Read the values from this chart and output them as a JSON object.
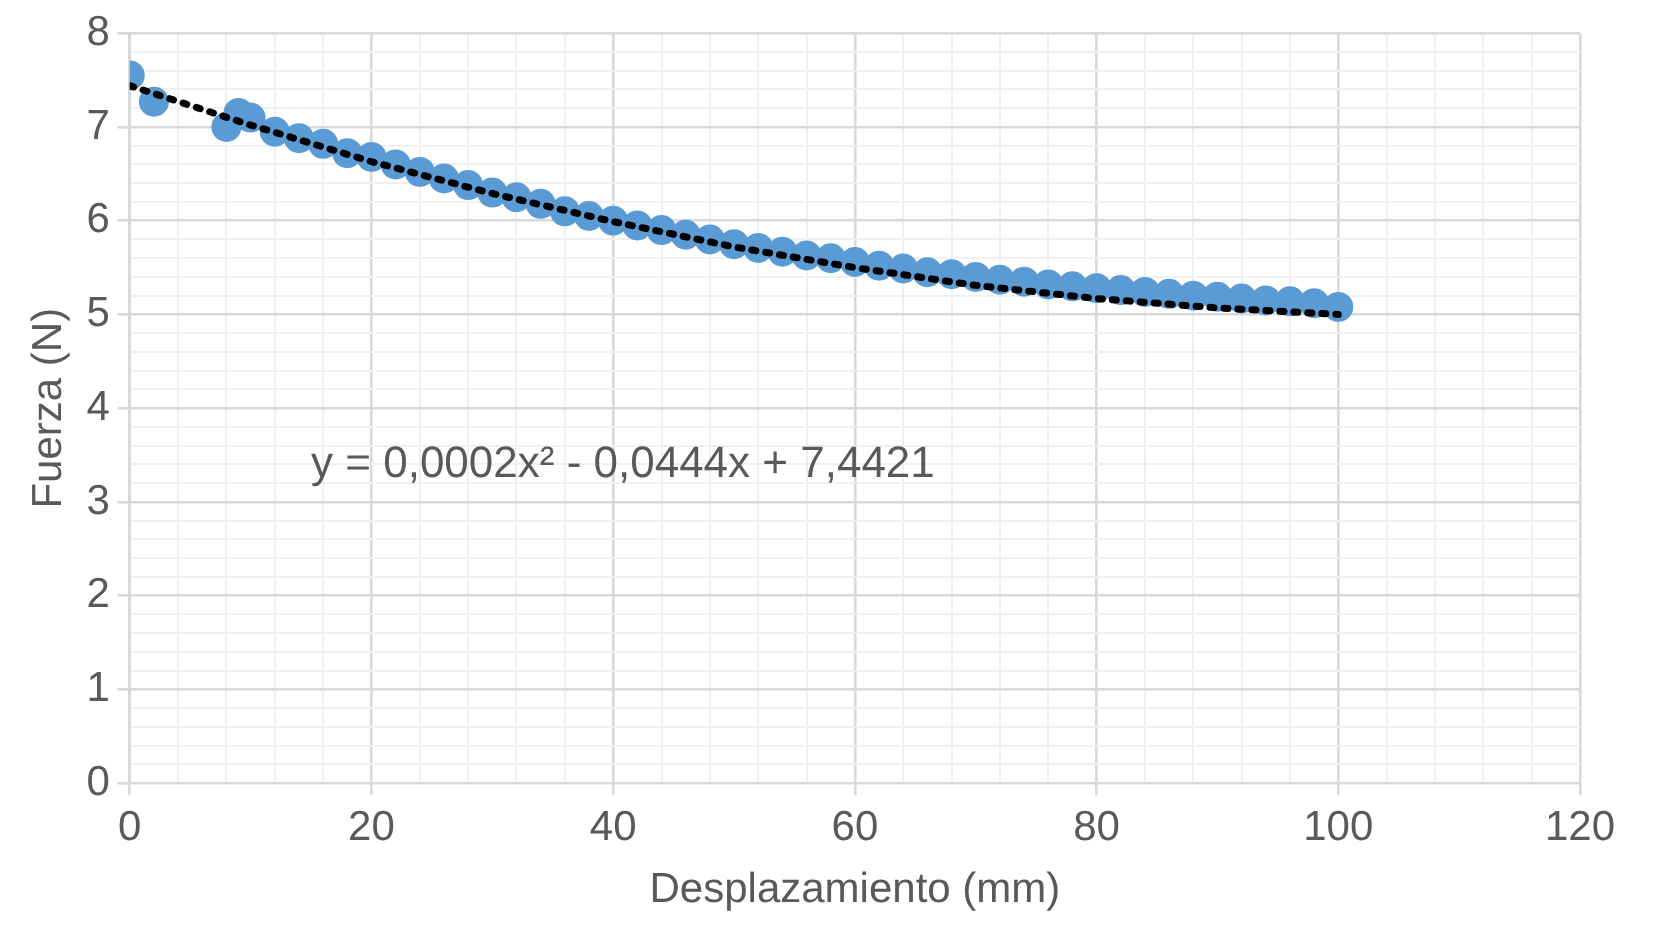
{
  "chart_data": {
    "type": "scatter",
    "xlabel": "Desplazamiento (mm)",
    "ylabel": "Fuerza (N)",
    "xlim": [
      0,
      120
    ],
    "ylim": [
      0,
      8
    ],
    "xticks": [
      0,
      {
        "value": 4,
        "label": null
      },
      {
        "value": 8,
        "label": null
      },
      {
        "value": 12,
        "label": null
      },
      {
        "value": 16,
        "label": null
      },
      20,
      {
        "value": 24,
        "label": null
      },
      {
        "value": 28,
        "label": null
      },
      {
        "value": 32,
        "label": null
      },
      {
        "value": 36,
        "label": null
      },
      40,
      {
        "value": 44,
        "label": null
      },
      {
        "value": 48,
        "label": null
      },
      {
        "value": 52,
        "label": null
      },
      {
        "value": 56,
        "label": null
      },
      60,
      {
        "value": 64,
        "label": null
      },
      {
        "value": 68,
        "label": null
      },
      {
        "value": 72,
        "label": null
      },
      {
        "value": 76,
        "label": null
      },
      80,
      {
        "value": 84,
        "label": null
      },
      {
        "value": 88,
        "label": null
      },
      {
        "value": 92,
        "label": null
      },
      {
        "value": 96,
        "label": null
      },
      100,
      {
        "value": 104,
        "label": null
      },
      {
        "value": 108,
        "label": null
      },
      {
        "value": 112,
        "label": null
      },
      {
        "value": 116,
        "label": null
      },
      120
    ],
    "yticks": [
      0,
      {
        "value": 0.2,
        "label": null
      },
      {
        "value": 0.4,
        "label": null
      },
      {
        "value": 0.6,
        "label": null
      },
      {
        "value": 0.8,
        "label": null
      },
      1,
      {
        "value": 1.2,
        "label": null
      },
      {
        "value": 1.4,
        "label": null
      },
      {
        "value": 1.6,
        "label": null
      },
      {
        "value": 1.8,
        "label": null
      },
      2,
      {
        "value": 2.2,
        "label": null
      },
      {
        "value": 2.4,
        "label": null
      },
      {
        "value": 2.6,
        "label": null
      },
      {
        "value": 2.8,
        "label": null
      },
      3,
      {
        "value": 3.2,
        "label": null
      },
      {
        "value": 3.4,
        "label": null
      },
      {
        "value": 3.6,
        "label": null
      },
      {
        "value": 3.8,
        "label": null
      },
      4,
      {
        "value": 4.2,
        "label": null
      },
      {
        "value": 4.4,
        "label": null
      },
      {
        "value": 4.6,
        "label": null
      },
      {
        "value": 4.8,
        "label": null
      },
      5,
      {
        "value": 5.2,
        "label": null
      },
      {
        "value": 5.4,
        "label": null
      },
      {
        "value": 5.6,
        "label": null
      },
      {
        "value": 5.8,
        "label": null
      },
      6,
      {
        "value": 6.2,
        "label": null
      },
      {
        "value": 6.4,
        "label": null
      },
      {
        "value": 6.6,
        "label": null
      },
      {
        "value": 6.8,
        "label": null
      },
      7,
      {
        "value": 7.2,
        "label": null
      },
      {
        "value": 7.4,
        "label": null
      },
      {
        "value": 7.6,
        "label": null
      },
      {
        "value": 7.8,
        "label": null
      },
      8
    ],
    "grid": true,
    "legend": false,
    "series": [
      {
        "color": "#5b9bd5",
        "marker": "circle",
        "x": [
          0,
          2,
          8,
          9,
          10,
          12,
          14,
          16,
          18,
          20,
          22,
          24,
          26,
          28,
          30,
          32,
          34,
          36,
          38,
          40,
          42,
          44,
          46,
          48,
          50,
          52,
          54,
          56,
          58,
          60,
          62,
          64,
          66,
          68,
          70,
          72,
          74,
          76,
          78,
          80,
          82,
          84,
          86,
          88,
          90,
          92,
          94,
          96,
          98,
          100
        ],
        "values": [
          7.55,
          7.27,
          7.0,
          7.15,
          7.1,
          6.95,
          6.88,
          6.82,
          6.72,
          6.68,
          6.6,
          6.52,
          6.45,
          6.38,
          6.3,
          6.25,
          6.18,
          6.1,
          6.05,
          6.0,
          5.95,
          5.9,
          5.85,
          5.8,
          5.75,
          5.71,
          5.67,
          5.63,
          5.6,
          5.56,
          5.52,
          5.49,
          5.45,
          5.43,
          5.4,
          5.37,
          5.35,
          5.32,
          5.3,
          5.28,
          5.26,
          5.24,
          5.22,
          5.2,
          5.19,
          5.17,
          5.15,
          5.14,
          5.12,
          5.08
        ]
      },
      {
        "type": "line",
        "color": "#000000",
        "marker": "none",
        "line_style": "dotted",
        "x": [
          0,
          10,
          20,
          30,
          40,
          50,
          60,
          70,
          80,
          90,
          100
        ],
        "values": [
          7.44,
          7.02,
          6.63,
          6.29,
          5.99,
          5.72,
          5.5,
          5.31,
          5.17,
          5.07,
          5.0
        ]
      }
    ],
    "annotations": [
      "y = 0,0002x² - 0,0444x + 7,4421"
    ]
  }
}
